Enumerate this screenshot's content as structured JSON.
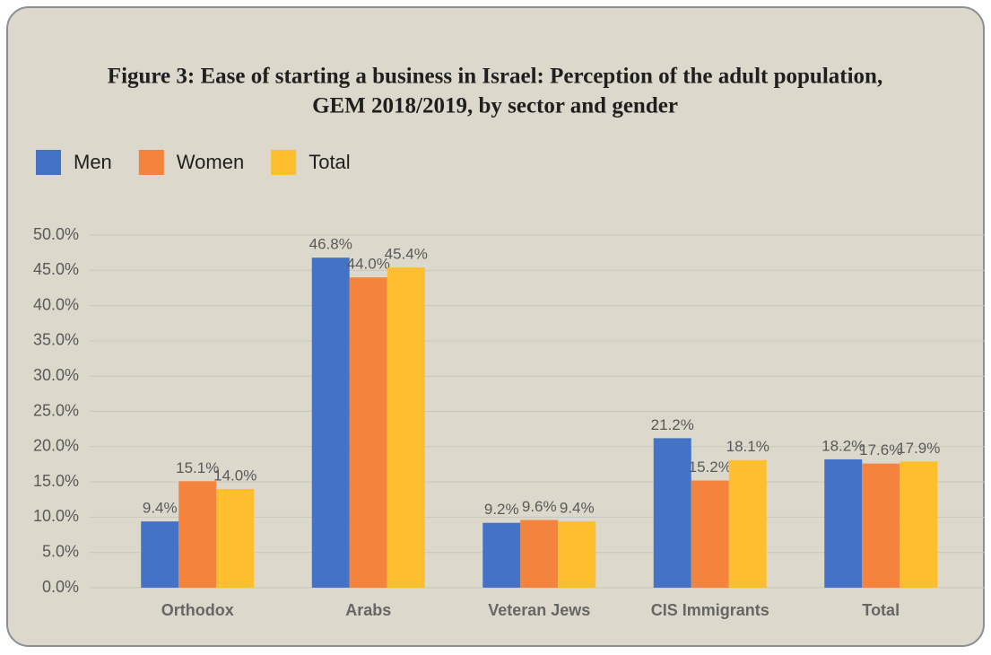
{
  "chart_data": {
    "type": "bar",
    "title": [
      "Figure 3: Ease of starting a business in Israel: Perception of the adult population,",
      "GEM 2018/2019, by sector and gender"
    ],
    "categories": [
      "Orthodox",
      "Arabs",
      "Veteran Jews",
      "CIS Immigrants",
      "Total"
    ],
    "series": [
      {
        "name": "Men",
        "color": "#4472c4",
        "values": [
          9.4,
          46.8,
          9.2,
          21.2,
          18.2
        ],
        "value_labels": [
          "9.4%",
          "46.8%",
          "9.2%",
          "21.2%",
          "18.2%"
        ]
      },
      {
        "name": "Women",
        "color": "#f4843d",
        "values": [
          15.1,
          44.0,
          9.6,
          15.2,
          17.6
        ],
        "value_labels": [
          "15.1%",
          "44.0%",
          "9.6%",
          "15.2%",
          "17.6%"
        ]
      },
      {
        "name": "Total",
        "color": "#fdbf2d",
        "values": [
          14.0,
          45.4,
          9.4,
          18.1,
          17.9
        ],
        "value_labels": [
          "14.0%",
          "45.4%",
          "9.4%",
          "18.1%",
          "17.9%"
        ]
      }
    ],
    "ylim": [
      0,
      50
    ],
    "yticks": [
      {
        "value": 0,
        "label": "0.0%"
      },
      {
        "value": 5,
        "label": "5.0%"
      },
      {
        "value": 10,
        "label": "10.0%"
      },
      {
        "value": 15,
        "label": "15.0%"
      },
      {
        "value": 20,
        "label": "20.0%"
      },
      {
        "value": 25,
        "label": "25.0%"
      },
      {
        "value": 30,
        "label": "30.0%"
      },
      {
        "value": 35,
        "label": "35.0%"
      },
      {
        "value": 40,
        "label": "40.0%"
      },
      {
        "value": 45,
        "label": "45.0%"
      },
      {
        "value": 50,
        "label": "50.0%"
      }
    ],
    "grid": true,
    "legend": "top-left"
  }
}
